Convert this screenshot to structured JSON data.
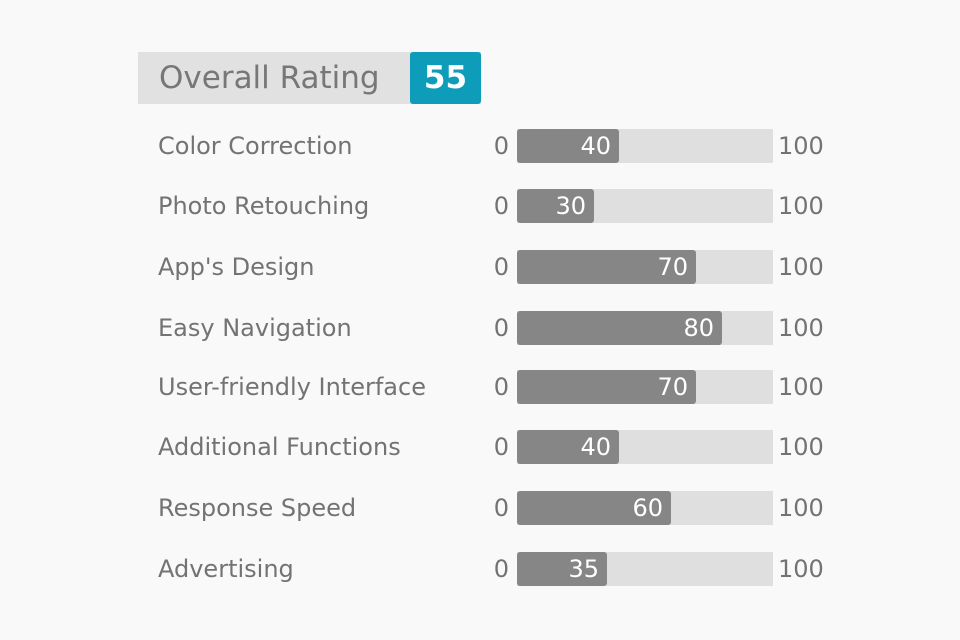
{
  "overall": {
    "label": "Overall Rating",
    "score": "55"
  },
  "chart_data": {
    "type": "bar",
    "orientation": "horizontal",
    "categories": [
      "Color Correction",
      "Photo Retouching",
      "App's Design",
      "Easy Navigation",
      "User-friendly Interface",
      "Additional Functions",
      "Response Speed",
      "Advertising"
    ],
    "values": [
      40,
      30,
      70,
      80,
      70,
      40,
      60,
      35
    ],
    "xlim": [
      0,
      100
    ],
    "min_label": "0",
    "max_label": "100",
    "colors": {
      "track": "#dfdfdf",
      "fill": "#868686",
      "badge": "#0d9dbb"
    }
  }
}
